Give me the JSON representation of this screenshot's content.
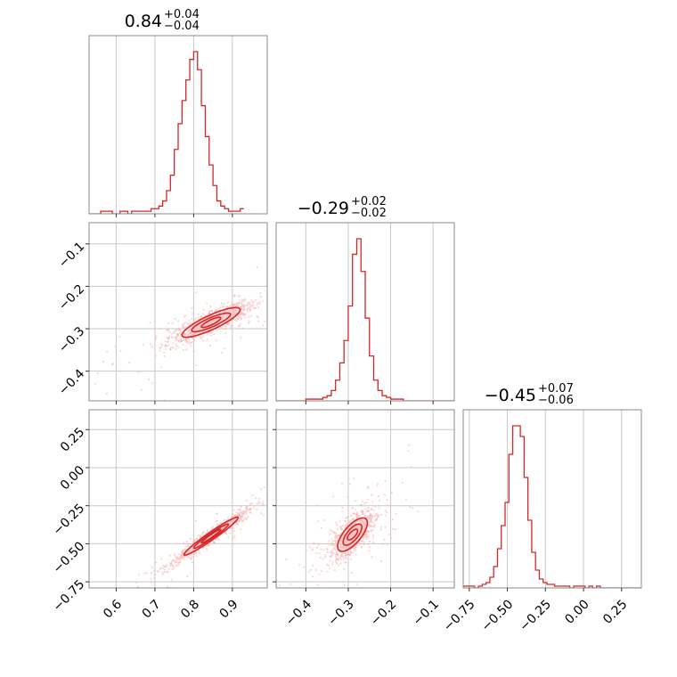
{
  "colors": {
    "accent": "#d62728",
    "scatter": "#f4b6b6",
    "contour_fill": "#f7cccc",
    "grid": "#c8c8c8",
    "frame": "#888888"
  },
  "chart_data": {
    "type": "corner",
    "parameters": [
      {
        "index": 0,
        "range": [
          0.53,
          0.99
        ],
        "ticks": [
          0.6,
          0.7,
          0.8,
          0.9
        ],
        "tick_labels": [
          "0.6",
          "0.7",
          "0.8",
          "0.9"
        ],
        "title": {
          "value": "0.84",
          "upper": "+0.04",
          "lower": "−0.04"
        }
      },
      {
        "index": 1,
        "range": [
          -0.47,
          -0.05
        ],
        "ticks": [
          -0.4,
          -0.3,
          -0.2,
          -0.1
        ],
        "tick_labels": [
          "−0.4",
          "−0.3",
          "−0.2",
          "−0.1"
        ],
        "title": {
          "value": "−0.29",
          "upper": "+0.02",
          "lower": "−0.02"
        }
      },
      {
        "index": 2,
        "range": [
          -0.79,
          0.38
        ],
        "ticks": [
          -0.75,
          -0.5,
          -0.25,
          0.0,
          0.25
        ],
        "tick_labels": [
          "−0.75",
          "−0.50",
          "−0.25",
          "0.00",
          "0.25"
        ],
        "title": {
          "value": "−0.45",
          "upper": "+0.07",
          "lower": "−0.06"
        }
      }
    ],
    "histograms": [
      {
        "param": 0,
        "start": 0.53,
        "bin_width": 0.01,
        "counts": [
          0,
          0,
          0,
          1,
          1,
          1,
          0,
          0,
          1,
          1,
          0,
          1,
          1,
          1,
          1,
          1,
          2,
          2,
          3,
          5,
          9,
          15,
          25,
          35,
          44,
          52,
          60,
          63,
          56,
          42,
          30,
          19,
          11,
          5,
          3,
          2,
          1,
          1,
          1,
          2
        ]
      },
      {
        "param": 1,
        "start": -0.47,
        "bin_width": 0.01,
        "counts": [
          0,
          0,
          0,
          0,
          0,
          0,
          0,
          1,
          1,
          1,
          1,
          2,
          3,
          6,
          12,
          22,
          35,
          55,
          85,
          94,
          75,
          48,
          26,
          12,
          6,
          3,
          2,
          1,
          1,
          1,
          0,
          0,
          0,
          0,
          0,
          0,
          0,
          0,
          0,
          0,
          0,
          0
        ]
      },
      {
        "param": 2,
        "start": -0.79,
        "bin_width": 0.025,
        "counts": [
          1,
          1,
          1,
          0,
          1,
          2,
          3,
          6,
          12,
          22,
          35,
          48,
          75,
          91,
          91,
          85,
          62,
          38,
          20,
          10,
          5,
          3,
          2,
          2,
          1,
          1,
          1,
          1,
          0,
          1,
          1,
          1,
          0,
          1,
          0,
          1,
          0,
          0,
          0,
          0,
          0,
          0,
          0,
          0,
          0,
          0,
          0
        ]
      }
    ],
    "pairs": [
      {
        "x_param": 0,
        "y_param": 1,
        "center": [
          0.845,
          -0.285
        ],
        "corr": 0.85,
        "contour_levels": [
          {
            "sx": 0.025,
            "sy": 0.012
          },
          {
            "sx": 0.05,
            "sy": 0.022
          },
          {
            "sx": 0.075,
            "sy": 0.035
          }
        ]
      },
      {
        "x_param": 0,
        "y_param": 2,
        "center": [
          0.845,
          -0.45
        ],
        "corr": 0.97,
        "contour_levels": [
          {
            "sx": 0.025,
            "sy": 0.045
          },
          {
            "sx": 0.045,
            "sy": 0.08
          },
          {
            "sx": 0.07,
            "sy": 0.125
          }
        ]
      },
      {
        "x_param": 1,
        "y_param": 2,
        "center": [
          -0.29,
          -0.44
        ],
        "corr": 0.7,
        "contour_levels": [
          {
            "sx": 0.012,
            "sy": 0.035
          },
          {
            "sx": 0.022,
            "sy": 0.07
          },
          {
            "sx": 0.035,
            "sy": 0.11
          }
        ]
      }
    ],
    "grid": true
  }
}
